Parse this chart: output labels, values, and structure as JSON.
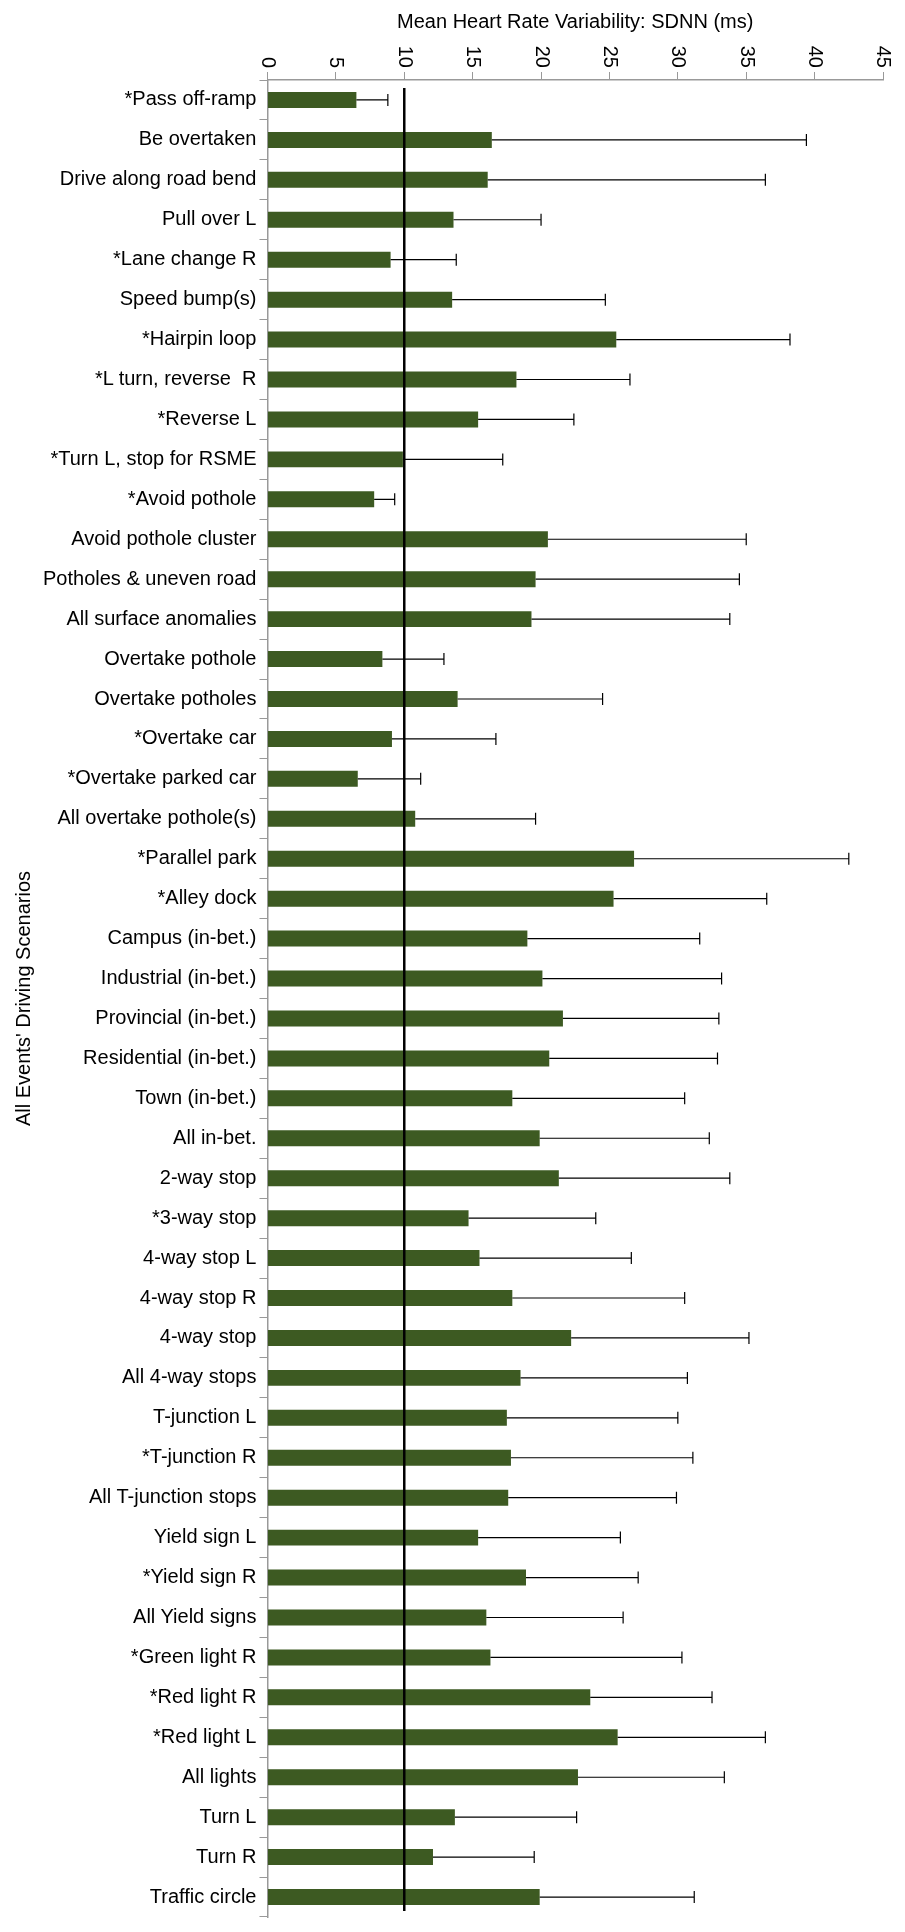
{
  "chart_data": {
    "type": "bar",
    "orientation": "horizontal",
    "xlabel": "Mean Heart Rate Variability: SDNN (ms)",
    "ylabel": "All Events' Driving Scenarios",
    "categories": [
      "*Pass off-ramp",
      "Be overtaken",
      "Drive along road bend",
      "Pull over L",
      "*Lane change R",
      "Speed bump(s)",
      "*Hairpin loop",
      "*L turn, reverse  R",
      "*Reverse L",
      "*Turn L, stop for RSME",
      "*Avoid pothole",
      "Avoid pothole cluster",
      "Potholes & uneven road",
      "All surface anomalies",
      "Overtake pothole",
      "Overtake potholes",
      "*Overtake car",
      "*Overtake parked car",
      "All overtake pothole(s)",
      "*Parallel park",
      "*Alley dock",
      "Campus (in-bet.)",
      "Industrial (in-bet.)",
      "Provincial (in-bet.)",
      "Residential (in-bet.)",
      "Town (in-bet.)",
      "All in-bet.",
      "2-way stop",
      "*3-way stop",
      "4-way stop L",
      "4-way stop R",
      "4-way stop",
      "All 4-way stops",
      "T-junction L",
      "*T-junction R",
      "All T-junction stops",
      "Yield sign L",
      "*Yield sign R",
      "All Yield signs",
      "*Green light R",
      "*Red light R",
      "*Red light L",
      "All lights",
      "Turn L",
      "Turn R",
      "Traffic circle"
    ],
    "values": [
      6.5,
      16.4,
      16.1,
      13.6,
      9.0,
      13.5,
      25.5,
      18.2,
      15.4,
      9.9,
      7.8,
      20.5,
      19.6,
      19.3,
      8.4,
      13.9,
      9.1,
      6.6,
      10.8,
      26.8,
      25.3,
      19.0,
      20.1,
      21.6,
      20.6,
      17.9,
      19.9,
      21.3,
      14.7,
      15.5,
      17.9,
      22.2,
      18.5,
      17.5,
      17.8,
      17.6,
      15.4,
      18.9,
      16.0,
      16.3,
      23.6,
      25.6,
      22.7,
      13.7,
      12.1,
      19.9
    ],
    "errors": [
      [
        6.5,
        8.8
      ],
      [
        16.4,
        39.4
      ],
      [
        16.1,
        36.4
      ],
      [
        13.6,
        20.0
      ],
      [
        9.0,
        13.8
      ],
      [
        13.5,
        24.7
      ],
      [
        25.5,
        38.2
      ],
      [
        18.2,
        26.5
      ],
      [
        15.4,
        22.4
      ],
      [
        9.9,
        17.2
      ],
      [
        7.8,
        9.3
      ],
      [
        20.5,
        35.0
      ],
      [
        19.6,
        34.5
      ],
      [
        19.3,
        33.8
      ],
      [
        8.4,
        12.9
      ],
      [
        13.9,
        24.5
      ],
      [
        9.1,
        16.7
      ],
      [
        6.6,
        11.2
      ],
      [
        10.8,
        19.6
      ],
      [
        26.8,
        42.5
      ],
      [
        25.3,
        36.5
      ],
      [
        19.0,
        31.6
      ],
      [
        20.1,
        33.2
      ],
      [
        21.6,
        33.0
      ],
      [
        20.6,
        32.9
      ],
      [
        17.9,
        30.5
      ],
      [
        19.9,
        32.3
      ],
      [
        21.3,
        33.8
      ],
      [
        14.7,
        24.0
      ],
      [
        15.5,
        26.6
      ],
      [
        17.9,
        30.5
      ],
      [
        22.2,
        35.2
      ],
      [
        18.5,
        30.7
      ],
      [
        17.5,
        30.0
      ],
      [
        17.8,
        31.1
      ],
      [
        17.6,
        29.9
      ],
      [
        15.4,
        25.8
      ],
      [
        18.9,
        27.1
      ],
      [
        16.0,
        26.0
      ],
      [
        16.3,
        30.3
      ],
      [
        23.6,
        32.5
      ],
      [
        25.6,
        36.4
      ],
      [
        22.7,
        33.4
      ],
      [
        13.7,
        22.6
      ],
      [
        12.1,
        19.5
      ],
      [
        19.9,
        31.2
      ]
    ],
    "color": "#3d5a22",
    "xlim": [
      0,
      45
    ],
    "xticks": [
      0,
      5,
      10,
      15,
      20,
      25,
      30,
      35,
      40,
      45
    ],
    "ref_lines": [
      {
        "axis": "x",
        "value": 10,
        "color": "#000000"
      }
    ],
    "grid": false,
    "legend": false
  }
}
